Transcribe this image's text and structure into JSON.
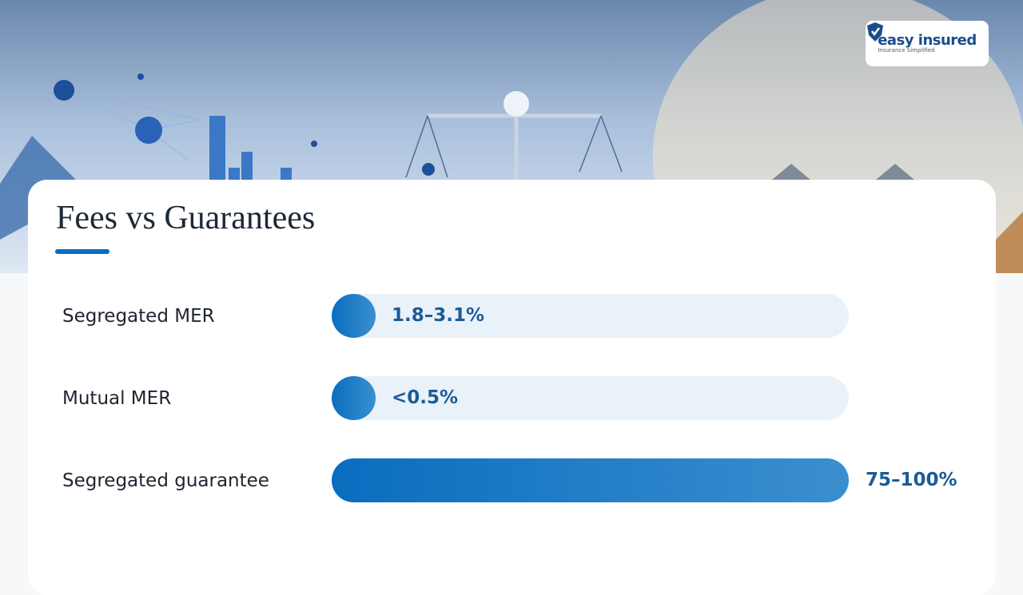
{
  "logo": {
    "name": "easy insured",
    "tagline": "Insurance Simplified"
  },
  "title": "Fees vs Guarantees",
  "rows": [
    {
      "label": "Segregated MER",
      "value": "1.8–3.1%"
    },
    {
      "label": "Mutual MER",
      "value": "<0.5%"
    },
    {
      "label": "Segregated guarantee",
      "value": "75–100%"
    }
  ]
}
